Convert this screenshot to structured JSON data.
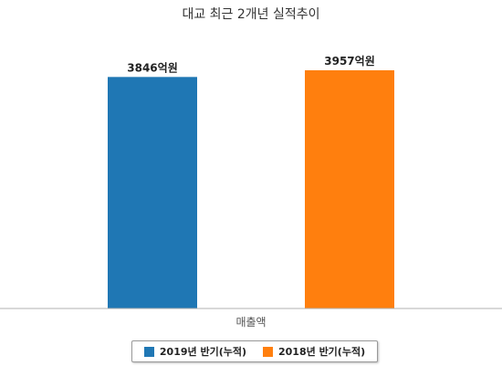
{
  "chart_data": {
    "type": "bar",
    "title": "대교 최근 2개년 실적추이",
    "categories": [
      "매출액"
    ],
    "series": [
      {
        "name": "2019년 반기(누적)",
        "values": [
          3846
        ],
        "label": "3846억원",
        "color": "#1f77b4"
      },
      {
        "name": "2018년 반기(누적)",
        "values": [
          3957
        ],
        "label": "3957억원",
        "color": "#ff7f0e"
      }
    ],
    "ylim": [
      0,
      4700
    ],
    "grid": false,
    "legend_position": "bottom"
  }
}
